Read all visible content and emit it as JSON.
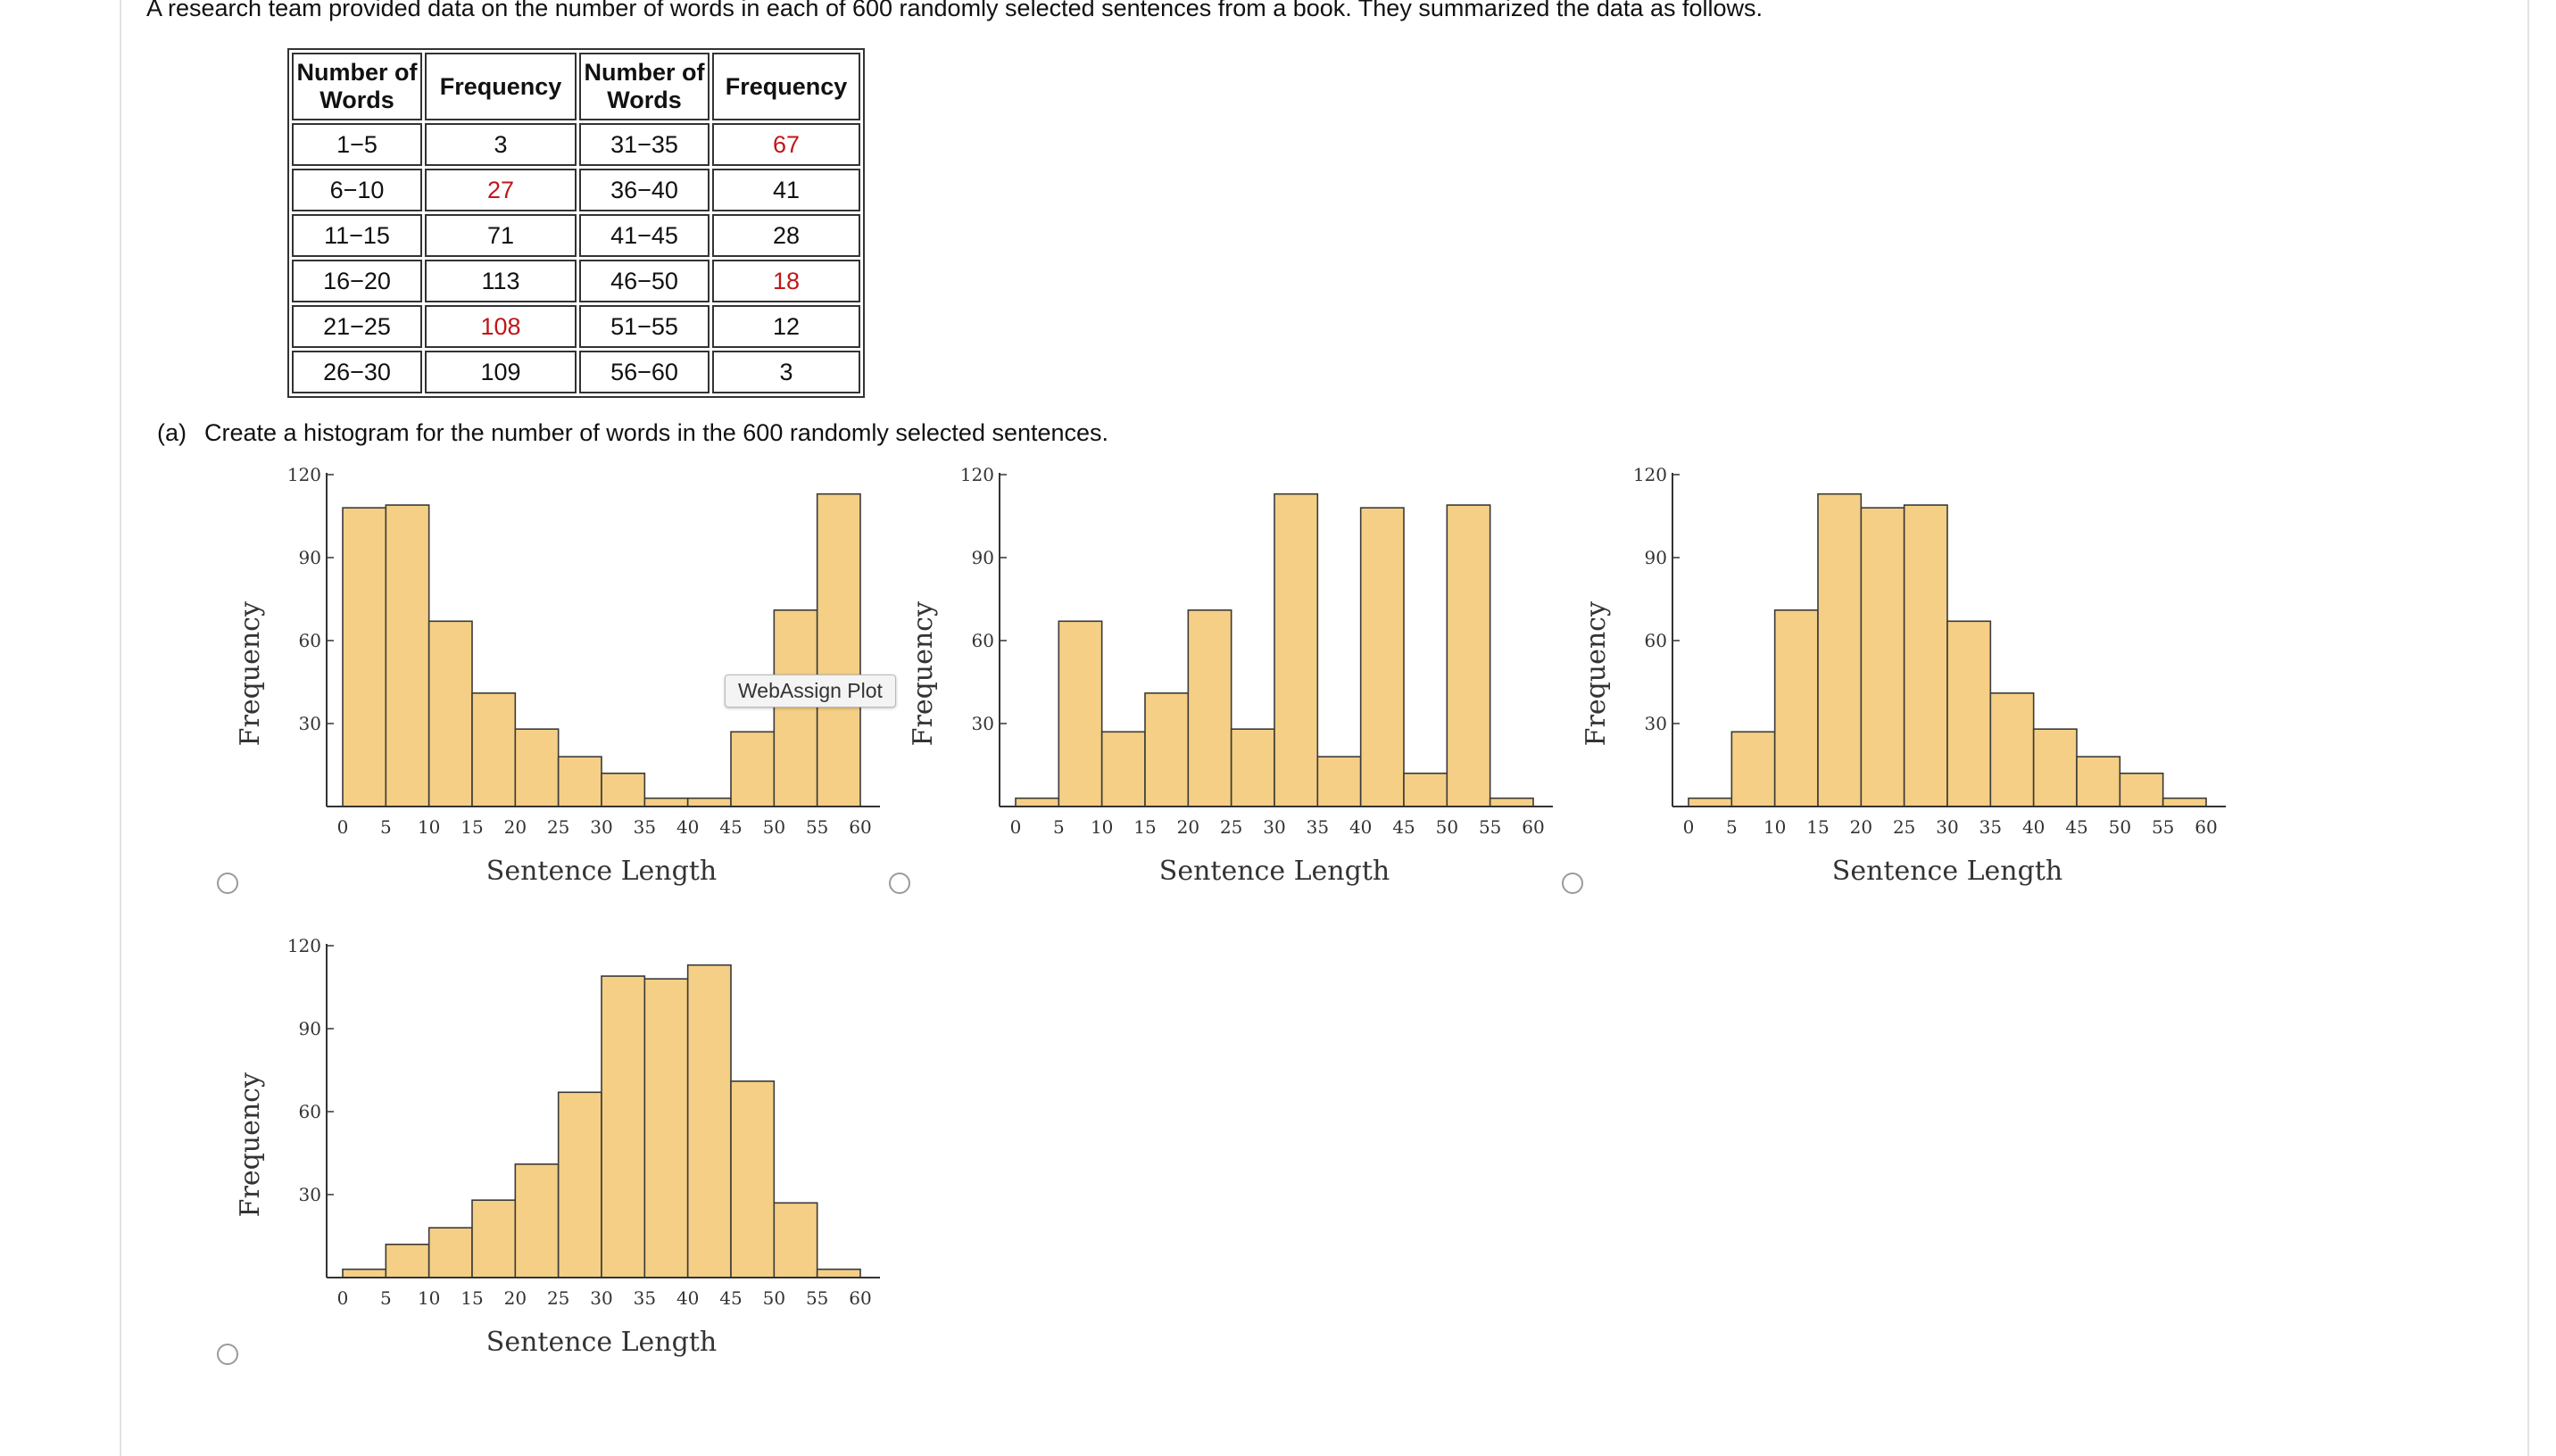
{
  "intro_text": "A research team provided data on the number of words in each of 600 randomly selected sentences from a book. They summarized the data as follows.",
  "table": {
    "headers": [
      "Number of Words",
      "Frequency",
      "Number of Words",
      "Frequency"
    ],
    "rows": [
      {
        "w1": "1−5",
        "f1": "3",
        "w2": "31−35",
        "f2": "67"
      },
      {
        "w1": "6−10",
        "f1": "27",
        "w2": "36−40",
        "f2": "41"
      },
      {
        "w1": "11−15",
        "f1": "71",
        "w2": "41−45",
        "f2": "28"
      },
      {
        "w1": "16−20",
        "f1": "113",
        "w2": "46−50",
        "f2": "18"
      },
      {
        "w1": "21−25",
        "f1": "108",
        "w2": "51−55",
        "f2": "12"
      },
      {
        "w1": "26−30",
        "f1": "109",
        "w2": "56−60",
        "f2": "3"
      }
    ],
    "highlight_color": "#c0161a"
  },
  "question": {
    "letter": "(a)",
    "text": "Create a histogram for the number of words in the 600 randomly selected sentences."
  },
  "tooltip": "WebAssign Plot",
  "colors": {
    "bar_fill": "#f4cf85",
    "bar_stroke": "#3a3a3a",
    "axis": "#333333"
  },
  "chart_data": [
    {
      "type": "bar",
      "xlabel": "Sentence Length",
      "ylabel": "Frequency",
      "ylim": [
        0,
        120
      ],
      "xlim": [
        0,
        60
      ],
      "yticks": [
        "30",
        "60",
        "90",
        "120"
      ],
      "xticks": [
        "0",
        "5",
        "10",
        "15",
        "20",
        "25",
        "30",
        "35",
        "40",
        "45",
        "50",
        "55",
        "60"
      ],
      "bins": [
        [
          0,
          5
        ],
        [
          5,
          10
        ],
        [
          10,
          15
        ],
        [
          15,
          20
        ],
        [
          20,
          25
        ],
        [
          25,
          30
        ],
        [
          30,
          35
        ],
        [
          35,
          40
        ],
        [
          40,
          45
        ],
        [
          45,
          50
        ],
        [
          50,
          55
        ],
        [
          55,
          60
        ]
      ],
      "values": [
        108,
        109,
        67,
        41,
        28,
        18,
        12,
        3,
        3,
        27,
        71,
        113
      ]
    },
    {
      "type": "bar",
      "xlabel": "Sentence Length",
      "ylabel": "Frequency",
      "ylim": [
        0,
        120
      ],
      "xlim": [
        0,
        60
      ],
      "yticks": [
        "30",
        "60",
        "90",
        "120"
      ],
      "xticks": [
        "0",
        "5",
        "10",
        "15",
        "20",
        "25",
        "30",
        "35",
        "40",
        "45",
        "50",
        "55",
        "60"
      ],
      "bins": [
        [
          0,
          5
        ],
        [
          5,
          10
        ],
        [
          10,
          15
        ],
        [
          15,
          20
        ],
        [
          20,
          25
        ],
        [
          25,
          30
        ],
        [
          30,
          35
        ],
        [
          35,
          40
        ],
        [
          40,
          45
        ],
        [
          45,
          50
        ],
        [
          50,
          55
        ],
        [
          55,
          60
        ]
      ],
      "values": [
        3,
        67,
        27,
        41,
        71,
        28,
        113,
        18,
        108,
        12,
        109,
        3
      ]
    },
    {
      "type": "bar",
      "xlabel": "Sentence Length",
      "ylabel": "Frequency",
      "ylim": [
        0,
        120
      ],
      "xlim": [
        0,
        60
      ],
      "yticks": [
        "30",
        "60",
        "90",
        "120"
      ],
      "xticks": [
        "0",
        "5",
        "10",
        "15",
        "20",
        "25",
        "30",
        "35",
        "40",
        "45",
        "50",
        "55",
        "60"
      ],
      "bins": [
        [
          0,
          5
        ],
        [
          5,
          10
        ],
        [
          10,
          15
        ],
        [
          15,
          20
        ],
        [
          20,
          25
        ],
        [
          25,
          30
        ],
        [
          30,
          35
        ],
        [
          35,
          40
        ],
        [
          40,
          45
        ],
        [
          45,
          50
        ],
        [
          50,
          55
        ],
        [
          55,
          60
        ]
      ],
      "values": [
        3,
        27,
        71,
        113,
        108,
        109,
        67,
        41,
        28,
        18,
        12,
        3
      ]
    },
    {
      "type": "bar",
      "xlabel": "Sentence Length",
      "ylabel": "Frequency",
      "ylim": [
        0,
        120
      ],
      "xlim": [
        0,
        60
      ],
      "yticks": [
        "30",
        "60",
        "90",
        "120"
      ],
      "xticks": [
        "0",
        "5",
        "10",
        "15",
        "20",
        "25",
        "30",
        "35",
        "40",
        "45",
        "50",
        "55",
        "60"
      ],
      "bins": [
        [
          0,
          5
        ],
        [
          5,
          10
        ],
        [
          10,
          15
        ],
        [
          15,
          20
        ],
        [
          20,
          25
        ],
        [
          25,
          30
        ],
        [
          30,
          35
        ],
        [
          35,
          40
        ],
        [
          40,
          45
        ],
        [
          45,
          50
        ],
        [
          50,
          55
        ],
        [
          55,
          60
        ]
      ],
      "values": [
        3,
        12,
        18,
        28,
        41,
        67,
        109,
        108,
        113,
        71,
        27,
        3
      ]
    }
  ]
}
